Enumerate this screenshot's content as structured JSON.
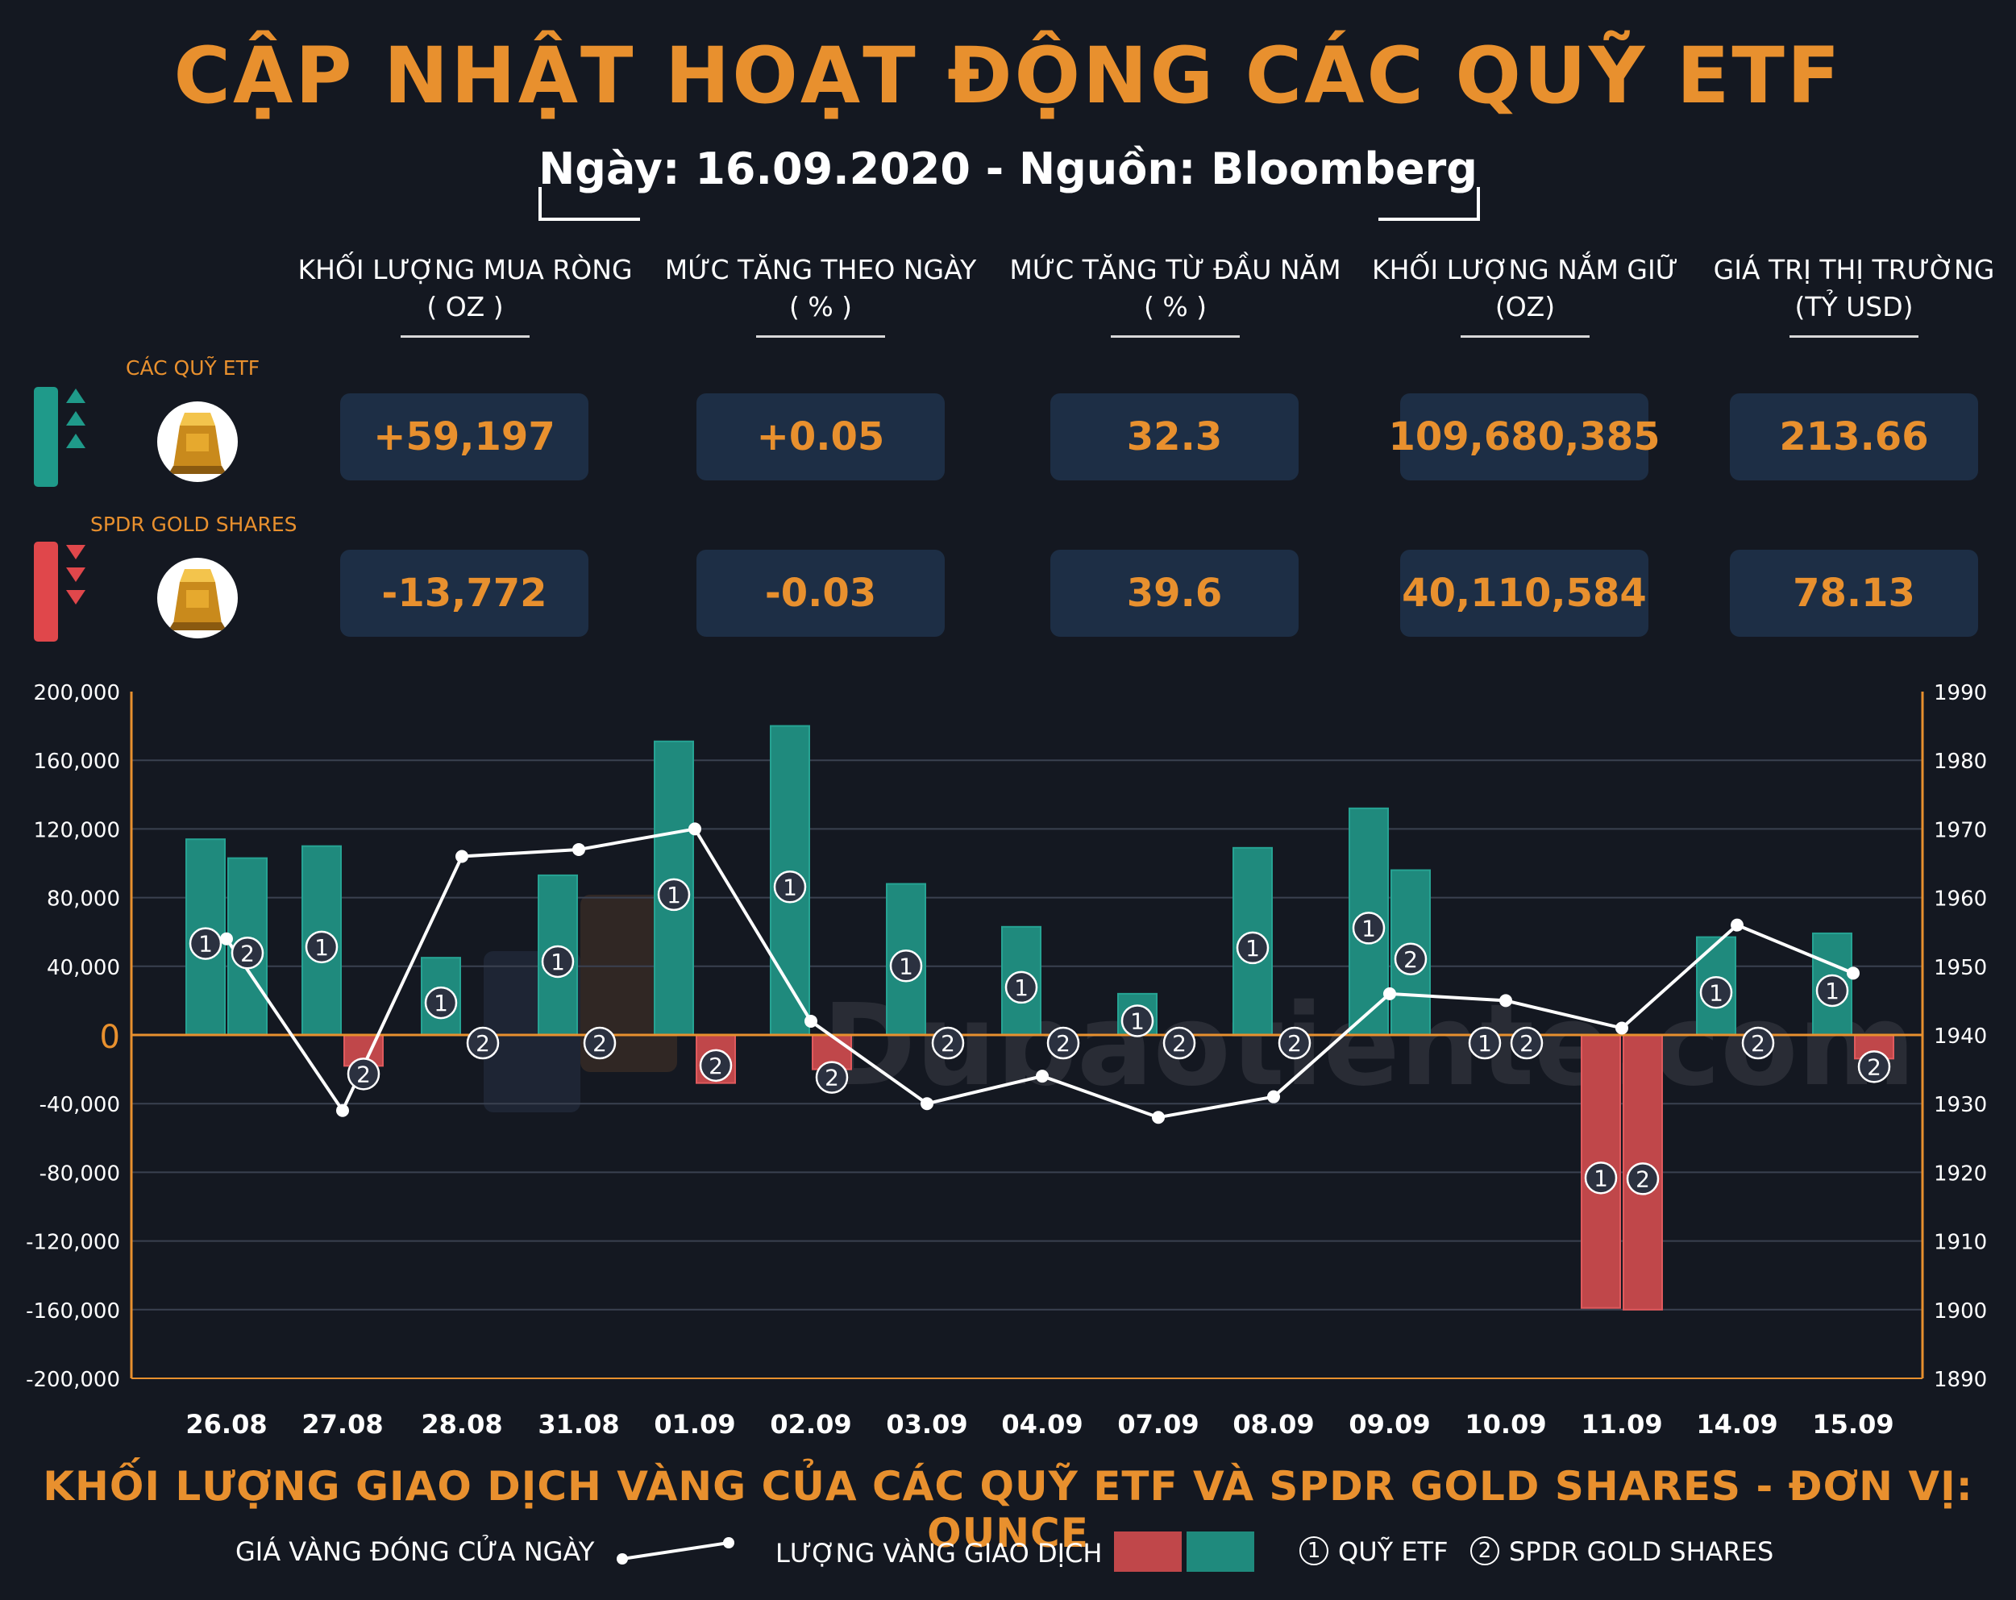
{
  "title": "CẬP NHẬT HOẠT ĐỘNG CÁC QUỸ ETF",
  "subtitle": "Ngày: 16.09.2020 - Nguồn: Bloomberg",
  "columns": [
    {
      "line1": "KHỐI LƯỢNG MUA RÒNG",
      "line2": "( OZ )"
    },
    {
      "line1": "MỨC TĂNG THEO NGÀY",
      "line2": "( % )"
    },
    {
      "line1": "MỨC TĂNG TỪ ĐẦU NĂM",
      "line2": "( % )"
    },
    {
      "line1": "KHỐI LƯỢNG NẮM GIỮ",
      "line2": "(OZ)"
    },
    {
      "line1": "GIÁ TRỊ THỊ TRƯỜNG",
      "line2": "(TỶ USD)"
    }
  ],
  "rows": [
    {
      "label": "CÁC QUỸ ETF",
      "trend": "up",
      "values": [
        "+59,197",
        "+0.05",
        "32.3",
        "109,680,385",
        "213.66"
      ]
    },
    {
      "label": "SPDR GOLD SHARES",
      "trend": "down",
      "values": [
        "-13,772",
        "-0.03",
        "39.6",
        "40,110,584",
        "78.13"
      ]
    }
  ],
  "colors": {
    "accent": "#e8902e",
    "positive": "#1f8a7d",
    "negative": "#d04a4d",
    "card": "#1d2e45",
    "background": "#141821"
  },
  "watermark": "Dubaotiente.com",
  "chart_data": {
    "type": "bar",
    "categories": [
      "26.08",
      "27.08",
      "28.08",
      "31.08",
      "01.09",
      "02.09",
      "03.09",
      "04.09",
      "07.09",
      "08.09",
      "09.09",
      "10.09",
      "11.09",
      "14.09",
      "15.09"
    ],
    "series": [
      {
        "name": "QUỸ ETF",
        "marker": "1",
        "values": [
          114000,
          110000,
          45000,
          93000,
          171000,
          180000,
          88000,
          63000,
          24000,
          109000,
          132000,
          0,
          -159000,
          57000,
          59197
        ]
      },
      {
        "name": "SPDR GOLD SHARES",
        "marker": "2",
        "values": [
          103000,
          -18000,
          0,
          0,
          -28000,
          -20000,
          0,
          0,
          0,
          0,
          96000,
          0,
          -160000,
          0,
          -13772
        ]
      }
    ],
    "line": {
      "name": "GIÁ VÀNG ĐÓNG CỬA NGÀY",
      "values": [
        1954,
        1929,
        1966,
        1967,
        1970,
        1942,
        1930,
        1934,
        1928,
        1931,
        1946,
        1945,
        1941,
        1956,
        1949
      ]
    },
    "ylim_left": [
      -200000,
      200000
    ],
    "yticks_left": [
      "200,000",
      "160,000",
      "120,000",
      "80,000",
      "40,000",
      "0",
      "-40,000",
      "-80,000",
      "-120,000",
      "-160,000",
      "-200,000"
    ],
    "ylim_right": [
      1890,
      1990
    ],
    "yticks_right": [
      "1990",
      "1980",
      "1970",
      "1960",
      "1950",
      "1940",
      "1930",
      "1920",
      "1910",
      "1900",
      "1890"
    ],
    "grid": true,
    "title": "KHỐI LƯỢNG GIAO DỊCH VÀNG CỦA CÁC QUỸ ETF VÀ SPDR GOLD SHARES - ĐƠN VỊ: OUNCE"
  },
  "legend": {
    "line_label": "GIÁ VÀNG ĐÓNG CỬA NGÀY",
    "bar_label": "LƯỢNG VÀNG GIAO DỊCH",
    "marker1": "1",
    "marker1_label": "QUỸ ETF",
    "marker2": "2",
    "marker2_label": "SPDR GOLD SHARES"
  }
}
